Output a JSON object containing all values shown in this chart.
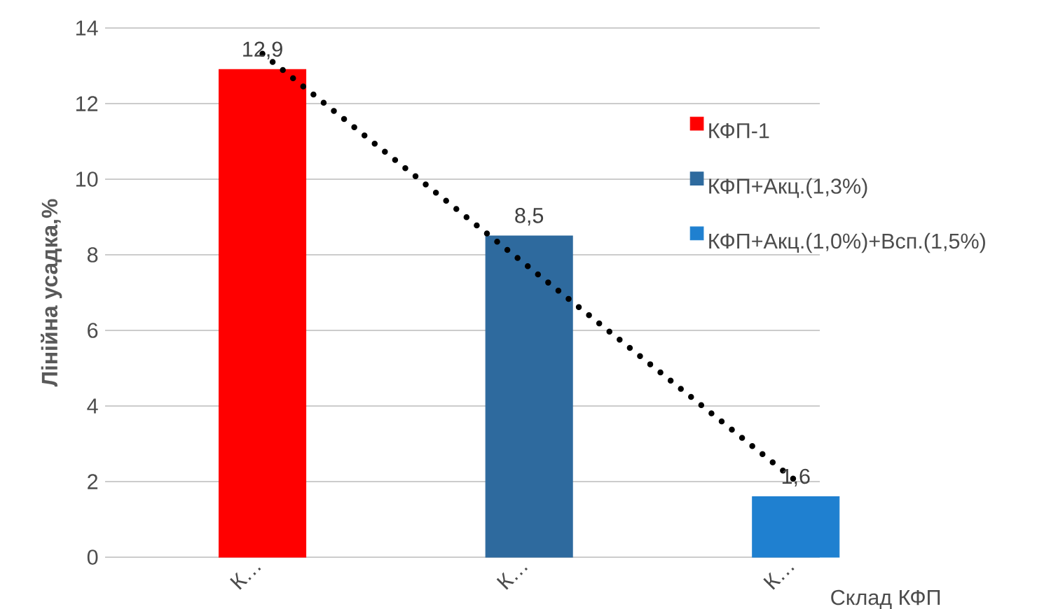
{
  "chart_data": {
    "type": "bar",
    "categories": [
      "К…",
      "К…",
      "К…"
    ],
    "xlabel": "Склад КФП",
    "ylabel": "Лінійна усадка,%",
    "series": [
      {
        "name": "КФП-1",
        "color": "#ff0000",
        "values": [
          12.9,
          null,
          null
        ],
        "value_labels": [
          "12,9",
          null,
          null
        ]
      },
      {
        "name": "КФП+Акц.(1,3%)",
        "color": "#2e6a9e",
        "values": [
          null,
          8.5,
          null
        ],
        "value_labels": [
          null,
          "8,5",
          null
        ]
      },
      {
        "name": "КФП+Акц.(1,0%)+Всп.(1,5%)",
        "color": "#1f80d0",
        "values": [
          null,
          null,
          1.6
        ],
        "value_labels": [
          null,
          null,
          "1,6"
        ]
      },
      {
        "type": "line",
        "color": "#000000",
        "line_style": "dotted",
        "marker": "none",
        "values": [
          13.32,
          7.67,
          2.02
        ]
      }
    ],
    "ylim": [
      0,
      14
    ],
    "yticks": [
      0,
      2,
      4,
      6,
      8,
      10,
      12,
      14
    ],
    "grid": "y",
    "legend": "right"
  }
}
